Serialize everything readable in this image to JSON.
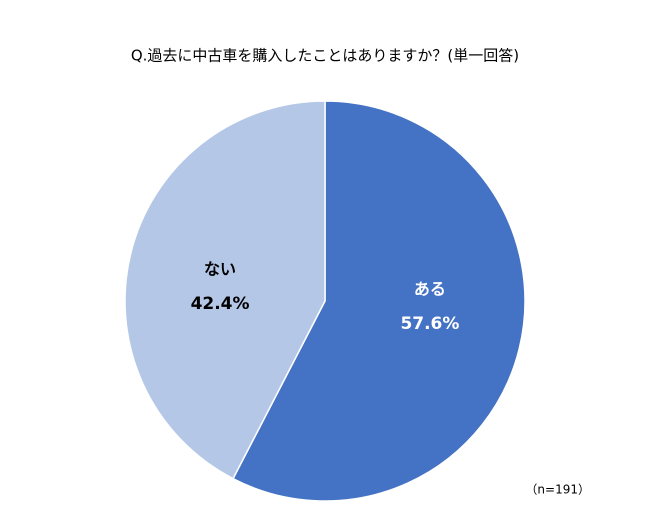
{
  "chart_data": {
    "type": "pie",
    "title": "Q.過去に中古車を購入したことはありますか？(単一回答)",
    "categories": [
      "ある",
      "ない"
    ],
    "values": [
      57.6,
      42.4
    ],
    "value_labels": [
      "57.6%",
      "42.4%"
    ],
    "colors": [
      "#4472c4",
      "#b4c7e7"
    ],
    "label_colors": [
      "#ffffff",
      "#000000"
    ],
    "note": "（n=191）"
  }
}
